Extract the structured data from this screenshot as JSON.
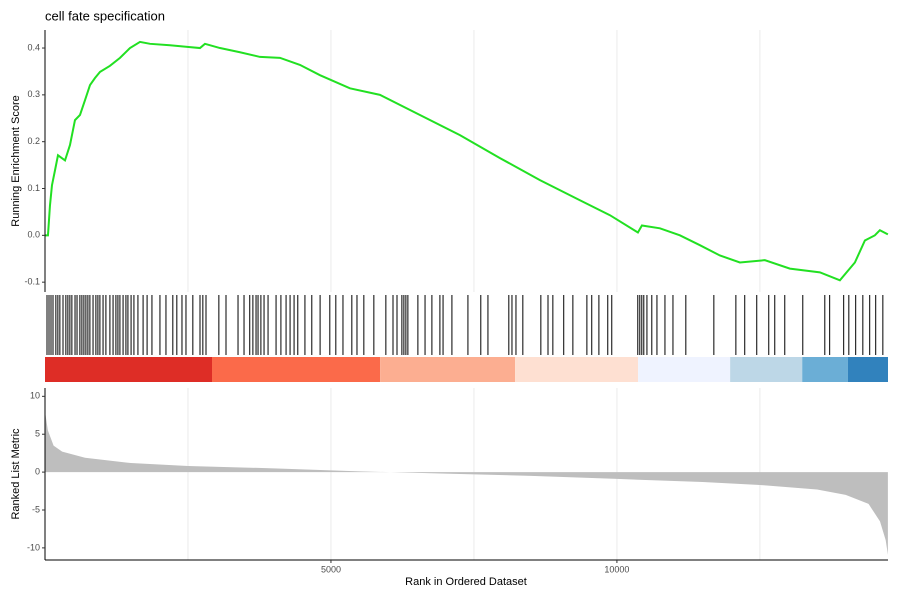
{
  "chart_data": [
    {
      "type": "line",
      "title": "cell fate specification",
      "ylabel": "Running Enrichment Score",
      "color": "#22e022",
      "xlim": [
        0,
        14740
      ],
      "ylim": [
        -0.121,
        0.4385
      ],
      "yticks": [
        -0.1,
        {
          "value": 0,
          "label": "0.0"
        },
        0.1,
        0.2,
        0.3,
        0.4
      ],
      "xgrid": [
        2500,
        5000,
        7500,
        10000,
        12500
      ],
      "x": [
        0,
        52,
        87,
        122,
        175,
        227,
        350,
        437,
        524,
        612,
        700,
        787,
        874,
        962,
        1136,
        1311,
        1486,
        1661,
        1836,
        2185,
        2535,
        2710,
        2797,
        3060,
        3409,
        3759,
        4108,
        4458,
        4808,
        5332,
        5857,
        6556,
        7255,
        7955,
        8654,
        9353,
        9878,
        10367,
        10437,
        10752,
        11101,
        11451,
        11801,
        12150,
        12587,
        13024,
        13549,
        13899,
        14161,
        14336,
        14510,
        14598,
        14738
      ],
      "values": [
        0.0,
        0.0,
        0.064,
        0.107,
        0.139,
        0.171,
        0.16,
        0.193,
        0.246,
        0.257,
        0.289,
        0.321,
        0.336,
        0.349,
        0.362,
        0.379,
        0.4,
        0.413,
        0.409,
        0.406,
        0.402,
        0.4,
        0.409,
        0.4,
        0.391,
        0.381,
        0.379,
        0.364,
        0.342,
        0.314,
        0.3,
        0.257,
        0.214,
        0.165,
        0.118,
        0.075,
        0.043,
        0.006,
        0.021,
        0.015,
        0.0,
        -0.021,
        -0.043,
        -0.058,
        -0.053,
        -0.071,
        -0.079,
        -0.096,
        -0.058,
        -0.011,
        0.0,
        0.011,
        0.002
      ]
    },
    {
      "type": "rug",
      "xlim": [
        0,
        14740
      ],
      "hits": [
        35,
        70,
        105,
        140,
        190,
        225,
        260,
        315,
        365,
        400,
        435,
        470,
        525,
        560,
        610,
        645,
        680,
        715,
        750,
        785,
        840,
        890,
        925,
        960,
        1015,
        1065,
        1135,
        1190,
        1240,
        1275,
        1310,
        1365,
        1415,
        1450,
        1505,
        1555,
        1625,
        1715,
        1785,
        1870,
        2010,
        2115,
        2235,
        2305,
        2395,
        2465,
        2585,
        2710,
        2760,
        2815,
        3040,
        3165,
        3375,
        3480,
        3580,
        3635,
        3690,
        3725,
        3775,
        3830,
        3900,
        4040,
        4125,
        4215,
        4285,
        4355,
        4420,
        4545,
        4665,
        4810,
        4980,
        5085,
        5210,
        5365,
        5455,
        5575,
        5750,
        5960,
        6085,
        6155,
        6240,
        6275,
        6310,
        6345,
        6520,
        6645,
        6765,
        6905,
        6960,
        7115,
        7395,
        7620,
        7745,
        8110,
        8165,
        8235,
        8355,
        8670,
        8795,
        8880,
        9070,
        9230,
        9475,
        9560,
        9685,
        9840,
        9910,
        10365,
        10400,
        10435,
        10470,
        10525,
        10610,
        10700,
        10840,
        10980,
        11205,
        11695,
        12080,
        12235,
        12445,
        12655,
        12760,
        12935,
        13250,
        13635,
        13720,
        13965,
        14055,
        14175,
        14300,
        14420,
        14525,
        14650
      ],
      "bands": [
        {
          "start": 0,
          "end": 2920,
          "color": "#de2d26"
        },
        {
          "start": 2920,
          "end": 5860,
          "color": "#fb6a4a"
        },
        {
          "start": 5860,
          "end": 8220,
          "color": "#fcae91"
        },
        {
          "start": 8220,
          "end": 10370,
          "color": "#fee0d2"
        },
        {
          "start": 10370,
          "end": 11980,
          "color": "#eff3ff"
        },
        {
          "start": 11980,
          "end": 13240,
          "color": "#bdd7e7"
        },
        {
          "start": 13240,
          "end": 14040,
          "color": "#6baed6"
        },
        {
          "start": 14040,
          "end": 14740,
          "color": "#3182bd"
        }
      ]
    },
    {
      "type": "area",
      "xlabel": "Rank in Ordered Dataset",
      "ylabel": "Ranked List Metric",
      "color": "#bebebe",
      "xlim": [
        0,
        14740
      ],
      "ylim": [
        -11.6,
        11.1
      ],
      "yticks": [
        -10,
        -5,
        0,
        5,
        10
      ],
      "xticks": [
        5000,
        10000
      ],
      "xgrid": [
        2500,
        5000,
        7500,
        10000,
        12500
      ],
      "x": [
        0,
        50,
        150,
        300,
        700,
        1500,
        2500,
        4000,
        5500,
        7000,
        8500,
        10000,
        11500,
        12500,
        13500,
        14000,
        14400,
        14600,
        14700,
        14738
      ],
      "values": [
        8,
        5.5,
        3.5,
        2.7,
        1.9,
        1.2,
        0.8,
        0.5,
        0.1,
        -0.2,
        -0.5,
        -0.9,
        -1.3,
        -1.7,
        -2.3,
        -3.0,
        -4.2,
        -6.5,
        -9.0,
        -10.9
      ]
    }
  ]
}
